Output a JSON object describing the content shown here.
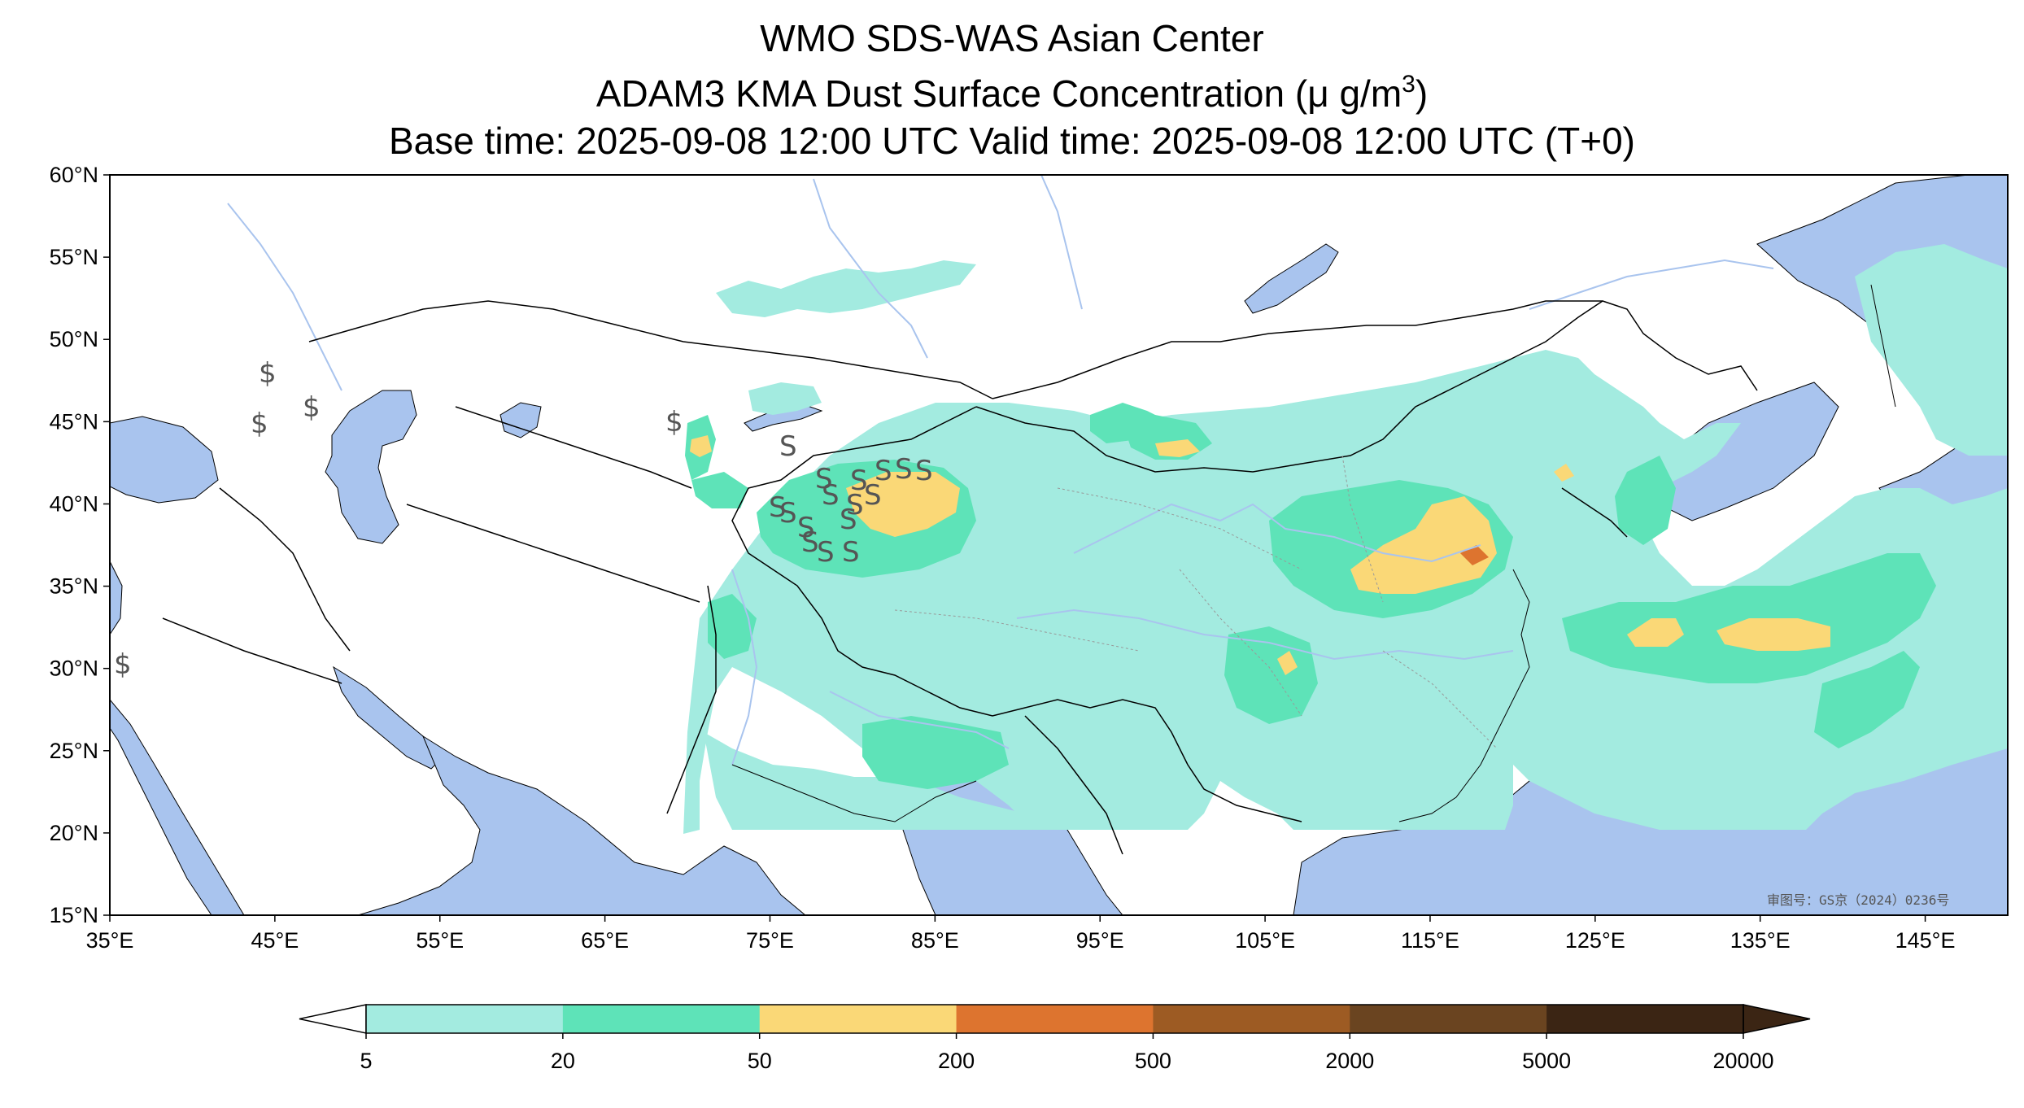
{
  "title": {
    "line1": "WMO SDS-WAS Asian Center",
    "line2_prefix": "ADAM3 KMA Dust Surface Concentration (μ g/m",
    "line2_sup": "3",
    "line2_suffix": ")",
    "line3": "Base time: 2025-09-08 12:00 UTC Valid time: 2025-09-08 12:00 UTC (T+0)"
  },
  "map": {
    "lon_range": [
      35,
      150
    ],
    "lat_range": [
      15,
      60
    ],
    "lon_ticks": [
      35,
      45,
      55,
      65,
      75,
      85,
      95,
      105,
      115,
      125,
      135,
      145
    ],
    "lat_ticks": [
      15,
      20,
      25,
      30,
      35,
      40,
      45,
      50,
      55,
      60
    ],
    "lon_tick_labels": [
      "35°E",
      "45°E",
      "55°E",
      "65°E",
      "75°E",
      "85°E",
      "95°E",
      "105°E",
      "115°E",
      "125°E",
      "135°E",
      "145°E"
    ],
    "lat_tick_labels": [
      "15°N",
      "20°N",
      "25°N",
      "30°N",
      "35°N",
      "40°N",
      "45°N",
      "50°N",
      "55°N",
      "60°N"
    ],
    "watermark": "审图号：GS京（2024）0236号",
    "colors": {
      "water": "#a9c4ee",
      "land": "#ffffff",
      "border": "#000000",
      "river": "#a9c4ee",
      "province": "#999999"
    }
  },
  "colorbar": {
    "levels": [
      "5",
      "20",
      "50",
      "200",
      "500",
      "2000",
      "5000",
      "20000"
    ],
    "colors": [
      "#a3ebe0",
      "#5ee3b8",
      "#fad877",
      "#dd742f",
      "#9d5b23",
      "#6a4420",
      "#3b2514"
    ],
    "extend": "both"
  }
}
